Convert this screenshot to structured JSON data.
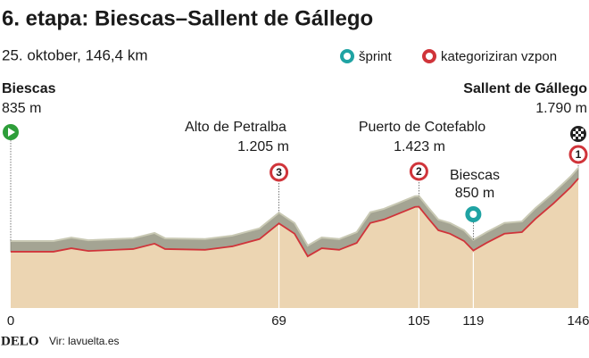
{
  "chart_data": {
    "type": "area",
    "title": "6. etapa: Biescas–Sallent de Gállego",
    "subtitle": "25. oktober, 146,4 km",
    "x": [
      0,
      11,
      15.6,
      20,
      31.5,
      37,
      39.7,
      50,
      57,
      64,
      69,
      73,
      76.4,
      80,
      84.5,
      89,
      92.5,
      96,
      99.4,
      104,
      105,
      107.5,
      110,
      113,
      116.6,
      119,
      122.4,
      127,
      131.5,
      135,
      139.6,
      144,
      146
    ],
    "values": [
      835,
      835,
      880,
      845,
      870,
      940,
      870,
      860,
      905,
      1000,
      1205,
      1070,
      775,
      880,
      860,
      950,
      1210,
      1255,
      1325,
      1420,
      1423,
      1265,
      1115,
      1070,
      975,
      850,
      950,
      1070,
      1090,
      1265,
      1465,
      1675,
      1790
    ],
    "color": "#d0343a",
    "fill": "#ecd5b2",
    "xlim": [
      0,
      146
    ],
    "ylim": [
      100,
      2000
    ],
    "xticks": [
      0,
      69,
      105,
      119,
      146
    ],
    "legend": [
      {
        "name": "šprint",
        "color": "#1fa3a3"
      },
      {
        "name": "kategoriziran vzpon",
        "color": "#d0343a"
      }
    ],
    "annotations": [
      {
        "x": 0,
        "label": "Biescas",
        "value": 835,
        "value_label": "835 m",
        "kind": "start"
      },
      {
        "x": 69,
        "label": "Alto de Petralba",
        "value": 1205,
        "value_label": "1.205 m",
        "kind": "climb",
        "category": "3"
      },
      {
        "x": 105,
        "label": "Puerto de Cotefablo",
        "value": 1423,
        "value_label": "1.423 m",
        "kind": "climb",
        "category": "2"
      },
      {
        "x": 119,
        "label": "Biescas",
        "value": 850,
        "value_label": "850 m",
        "kind": "sprint"
      },
      {
        "x": 146,
        "label": "Sallent de Gállego",
        "value": 1790,
        "value_label": "1.790 m",
        "kind": "finish",
        "category": "1"
      }
    ],
    "brand": "DELO",
    "source": "Vir: lavuelta.es"
  }
}
